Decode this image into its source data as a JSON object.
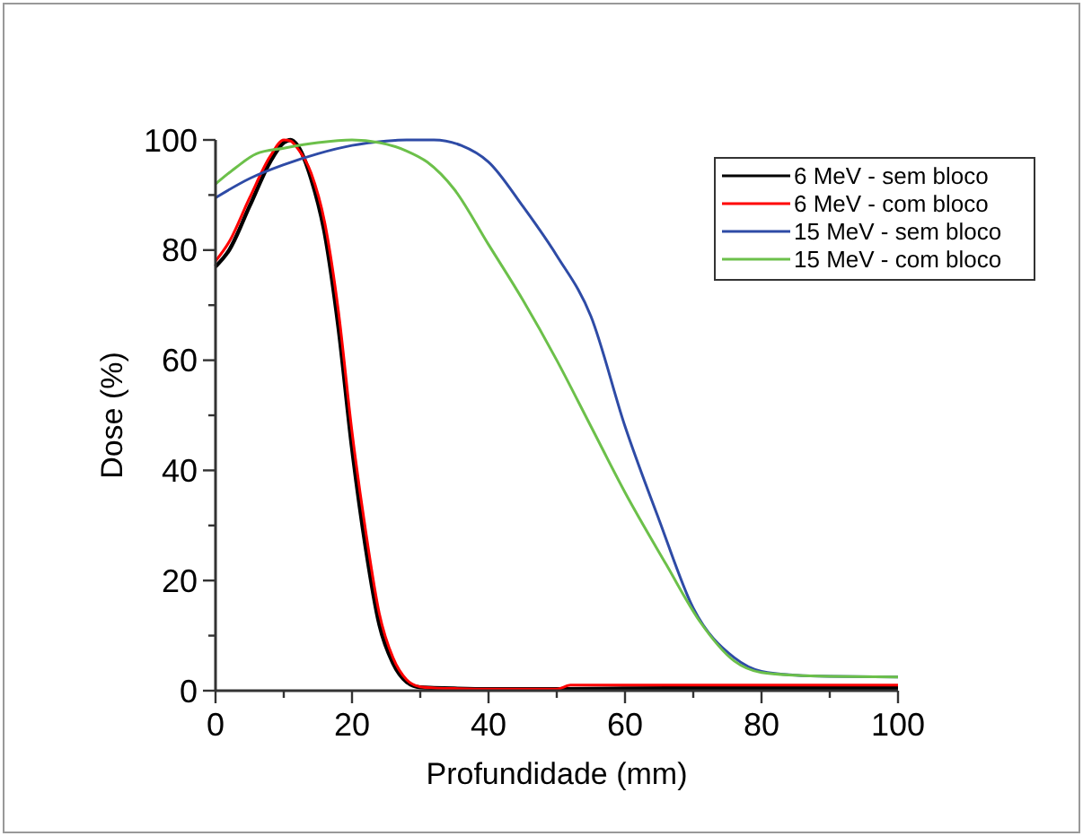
{
  "chart_data": {
    "type": "line",
    "xlabel": "Profundidade (mm)",
    "ylabel": "Dose (%)",
    "xlim": [
      0,
      100
    ],
    "ylim": [
      0,
      100
    ],
    "xticks": [
      0,
      {
        "value": 10,
        "label": null
      },
      20,
      {
        "value": 30,
        "label": null
      },
      40,
      {
        "value": 50,
        "label": null
      },
      60,
      {
        "value": 70,
        "label": null
      },
      80,
      {
        "value": 90,
        "label": null
      },
      100
    ],
    "yticks": [
      0,
      {
        "value": 10,
        "label": null
      },
      20,
      {
        "value": 30,
        "label": null
      },
      40,
      {
        "value": 50,
        "label": null
      },
      60,
      {
        "value": 70,
        "label": null
      },
      80,
      {
        "value": 90,
        "label": null
      },
      100
    ],
    "grid": false,
    "legend": "top right",
    "marker": "none",
    "line_style": "solid",
    "series": [
      {
        "name": "6 MeV - sem bloco",
        "color": "#000000",
        "x": [
          0,
          2,
          5,
          8,
          10,
          11,
          12,
          14,
          16,
          18,
          20,
          22,
          24,
          26,
          28,
          30,
          32,
          35,
          40,
          50,
          60,
          80,
          100
        ],
        "values": [
          77,
          80,
          88,
          96,
          99.5,
          100,
          99,
          93,
          83,
          66,
          44,
          26,
          12,
          5,
          1.6,
          0.6,
          0.5,
          0.4,
          0.3,
          0.3,
          0.4,
          0.5,
          0.5
        ]
      },
      {
        "name": "6 MeV - com bloco",
        "color": "#ff0000",
        "x": [
          0,
          2,
          5,
          8,
          10,
          11,
          12,
          14,
          16,
          18,
          20,
          22,
          24,
          26,
          28,
          30,
          32,
          35,
          40,
          50,
          52,
          60,
          80,
          100
        ],
        "values": [
          78,
          81.5,
          89.5,
          97,
          100,
          99.8,
          98.5,
          94,
          85,
          69,
          47,
          29,
          14,
          6,
          2,
          0.7,
          0.5,
          0.4,
          0.3,
          0.3,
          1,
          1,
          1,
          1
        ]
      },
      {
        "name": "15 MeV - sem bloco",
        "color": "#2e4ba6",
        "x": [
          0,
          5,
          10,
          15,
          20,
          25,
          28,
          32,
          36,
          40,
          45,
          50,
          55,
          60,
          65,
          70,
          76,
          80,
          85,
          90,
          100
        ],
        "values": [
          89.5,
          93,
          95.5,
          97.5,
          99,
          99.8,
          100,
          100,
          99,
          96,
          88,
          79,
          68,
          48,
          31,
          15,
          6,
          3.5,
          2.8,
          2.6,
          2.5
        ]
      },
      {
        "name": "15 MeV - com bloco",
        "color": "#6cc04a",
        "x": [
          0,
          3,
          6,
          10,
          15,
          20,
          24,
          28,
          31,
          35,
          40,
          45,
          50,
          55,
          60,
          66,
          71,
          76,
          80,
          85,
          90,
          100
        ],
        "values": [
          92,
          95,
          97.5,
          98.5,
          99.5,
          100,
          99.5,
          98,
          96,
          91,
          81,
          71,
          60,
          48,
          36,
          23,
          12.5,
          5.4,
          3.3,
          2.8,
          2.6,
          2.5
        ]
      }
    ]
  }
}
